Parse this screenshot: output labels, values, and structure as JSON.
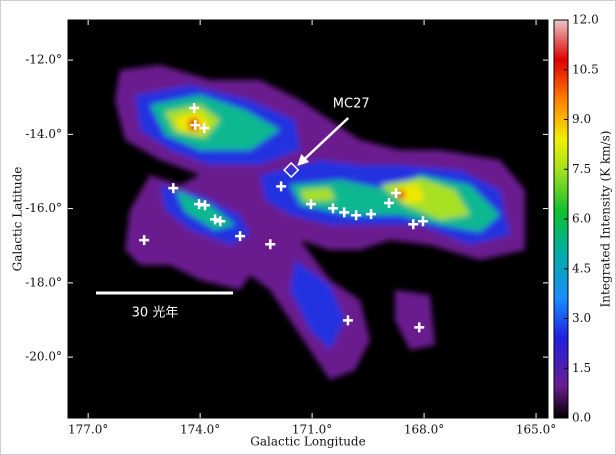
{
  "chart_data": {
    "type": "map",
    "xlabel": "Galactic Longitude",
    "ylabel": "Galactic Latitude",
    "xlim": [
      177.54,
      164.68
    ],
    "ylim": [
      -21.64,
      -10.92
    ],
    "xticks": [
      {
        "value": 177,
        "label": "177.0°"
      },
      {
        "value": 174,
        "label": "174.0°"
      },
      {
        "value": 171,
        "label": "171.0°"
      },
      {
        "value": 168,
        "label": "168.0°"
      },
      {
        "value": 165,
        "label": "165.0°"
      }
    ],
    "yticks": [
      {
        "value": -12,
        "label": "-12.0°"
      },
      {
        "value": -14,
        "label": "-14.0°"
      },
      {
        "value": -16,
        "label": "-16.0°"
      },
      {
        "value": -18,
        "label": "-18.0°"
      },
      {
        "value": -20,
        "label": "-20.0°"
      }
    ],
    "colorbar": {
      "label": "Integrated Intensity (K km/s)",
      "lim": [
        0,
        12
      ],
      "ticks": [
        {
          "value": 0,
          "label": "0.0"
        },
        1.5,
        {
          "value": 3,
          "label": "3.0"
        },
        4.5,
        {
          "value": 6,
          "label": "6.0"
        },
        7.5,
        {
          "value": 9,
          "label": "9.0"
        },
        10.5,
        {
          "value": 12,
          "label": "12.0"
        }
      ]
    },
    "points": {
      "color": "#ffffff",
      "x": [
        174.16,
        174.13,
        173.89,
        174.72,
        174.03,
        173.87,
        173.6,
        173.46,
        175.5,
        172.93,
        172.12,
        171.83,
        171.03,
        170.44,
        170.14,
        169.82,
        169.42,
        168.94,
        168.75,
        168.29,
        168.03,
        170.04,
        168.13
      ],
      "y": [
        -13.29,
        -13.75,
        -13.83,
        -15.45,
        -15.88,
        -15.91,
        -16.29,
        -16.34,
        -16.85,
        -16.74,
        -16.96,
        -15.4,
        -15.88,
        -15.99,
        -16.1,
        -16.18,
        -16.15,
        -15.85,
        -15.58,
        -16.42,
        -16.34,
        -19.01,
        -19.2
      ]
    },
    "marker": {
      "label": "MC27",
      "x": 171.56,
      "y": -14.96
    },
    "scale_bar": {
      "label": "30 光年"
    }
  }
}
